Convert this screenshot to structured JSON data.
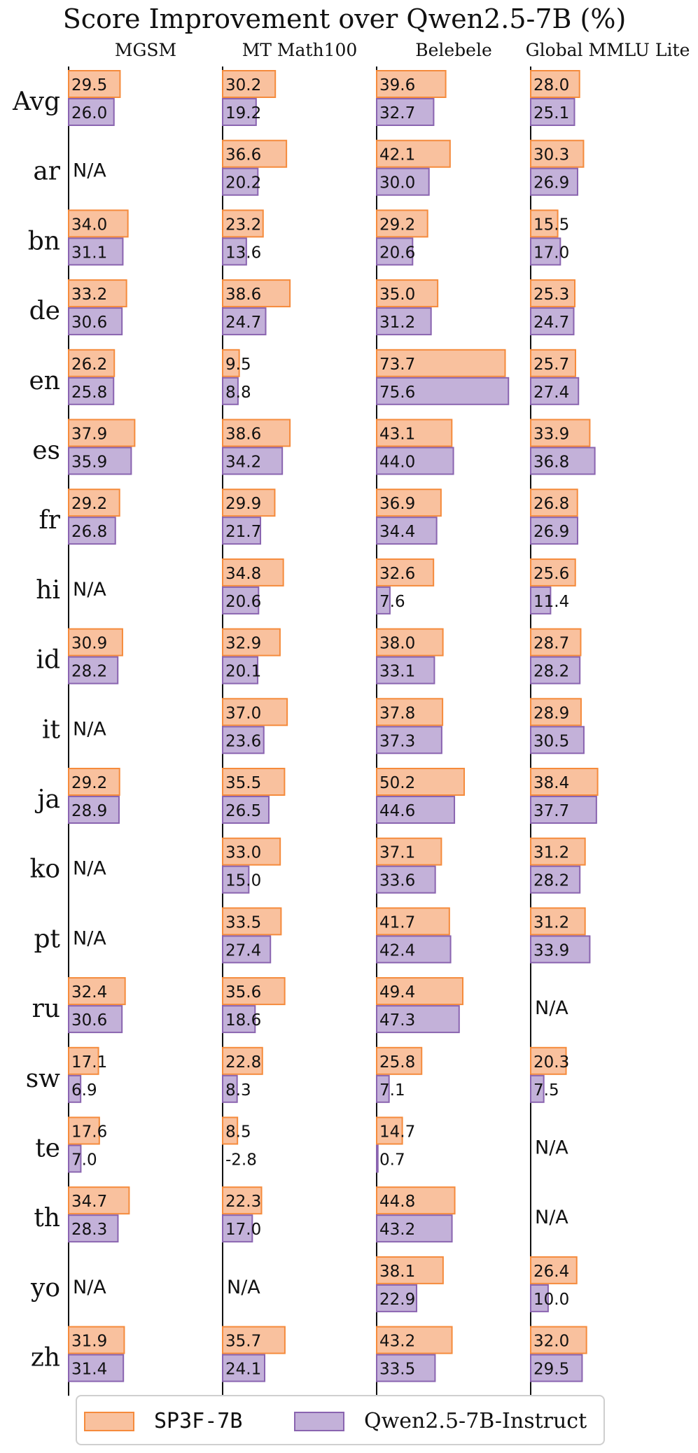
{
  "chart_data": {
    "type": "bar",
    "title": "Score Improvement over Qwen2.5-7B (%)",
    "orientation": "horizontal",
    "categories": [
      "Avg",
      "ar",
      "bn",
      "de",
      "en",
      "es",
      "fr",
      "hi",
      "id",
      "it",
      "ja",
      "ko",
      "pt",
      "ru",
      "sw",
      "te",
      "th",
      "yo",
      "zh"
    ],
    "na_label": "N/A",
    "colors": {
      "SP3F-7B": "#f9c19e",
      "SP3F-7B_edge": "#f58b3c",
      "Qwen2.5-7B-Instruct": "#c3b1d9",
      "Qwen2.5-7B-Instruct_edge": "#8a64b0"
    },
    "legend": {
      "placement": "bottom",
      "entries": [
        "SP3F-7B",
        "Qwen2.5-7B-Instruct"
      ]
    },
    "panels": [
      {
        "title": "MGSM",
        "series": [
          {
            "name": "SP3F-7B",
            "values": [
              29.5,
              null,
              34.0,
              33.2,
              26.2,
              37.9,
              29.2,
              null,
              30.9,
              null,
              29.2,
              null,
              null,
              32.4,
              17.1,
              17.6,
              34.7,
              null,
              31.9
            ]
          },
          {
            "name": "Qwen2.5-7B-Instruct",
            "values": [
              26.0,
              null,
              31.1,
              30.6,
              25.8,
              35.9,
              26.8,
              null,
              28.2,
              null,
              28.9,
              null,
              null,
              30.6,
              6.9,
              7.0,
              28.3,
              null,
              31.4
            ]
          }
        ]
      },
      {
        "title": "MT Math100",
        "series": [
          {
            "name": "SP3F-7B",
            "values": [
              30.2,
              36.6,
              23.2,
              38.6,
              9.5,
              38.6,
              29.9,
              34.8,
              32.9,
              37.0,
              35.5,
              33.0,
              33.5,
              35.6,
              22.8,
              8.5,
              22.3,
              null,
              35.7
            ]
          },
          {
            "name": "Qwen2.5-7B-Instruct",
            "values": [
              19.2,
              20.2,
              13.6,
              24.7,
              8.8,
              34.2,
              21.7,
              20.6,
              20.1,
              23.6,
              26.5,
              15.0,
              27.4,
              18.6,
              8.3,
              -2.8,
              17.0,
              null,
              24.1
            ]
          }
        ]
      },
      {
        "title": "Belebele",
        "series": [
          {
            "name": "SP3F-7B",
            "values": [
              39.6,
              42.1,
              29.2,
              35.0,
              73.7,
              43.1,
              36.9,
              32.6,
              38.0,
              37.8,
              50.2,
              37.1,
              41.7,
              49.4,
              25.8,
              14.7,
              44.8,
              38.1,
              43.2
            ]
          },
          {
            "name": "Qwen2.5-7B-Instruct",
            "values": [
              32.7,
              30.0,
              20.6,
              31.2,
              75.6,
              44.0,
              34.4,
              7.6,
              33.1,
              37.3,
              44.6,
              33.6,
              42.4,
              47.3,
              7.1,
              0.7,
              43.2,
              22.9,
              33.5
            ]
          }
        ]
      },
      {
        "title": "Global MMLU Lite",
        "series": [
          {
            "name": "SP3F-7B",
            "values": [
              28.0,
              30.3,
              15.5,
              25.3,
              25.7,
              33.9,
              26.8,
              25.6,
              28.7,
              28.9,
              38.4,
              31.2,
              31.2,
              null,
              20.3,
              null,
              null,
              26.4,
              32.0
            ]
          },
          {
            "name": "Qwen2.5-7B-Instruct",
            "values": [
              25.1,
              26.9,
              17.0,
              24.7,
              27.4,
              36.8,
              26.9,
              11.4,
              28.2,
              30.5,
              37.7,
              28.2,
              33.9,
              null,
              7.5,
              null,
              null,
              10.0,
              29.5
            ]
          }
        ]
      }
    ]
  }
}
